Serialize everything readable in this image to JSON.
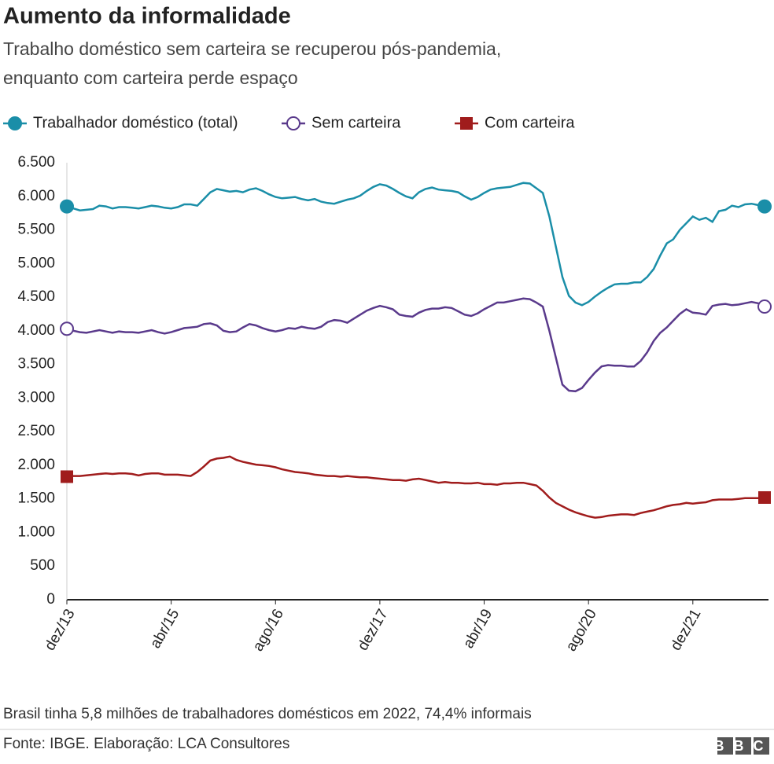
{
  "chart_data": {
    "type": "line",
    "title": "Aumento da informalidade",
    "subtitle": [
      "Trabalho doméstico sem carteira se recuperou pós-pandemia,",
      "enquanto com carteira perde espaço"
    ],
    "note": "Brasil tinha 5,8 milhões de trabalhadores domésticos em 2022, 74,4% informais",
    "source": "Fonte: IBGE. Elaboração: LCA Consultores",
    "logo": "BBC",
    "ylim": [
      0,
      6500
    ],
    "yticks": [
      0,
      500,
      {
        "value": 1000,
        "label": "1.000"
      },
      {
        "value": 1500,
        "label": "1.500"
      },
      {
        "value": 2000,
        "label": "2.000"
      },
      {
        "value": 2500,
        "label": "2.500"
      },
      {
        "value": 3000,
        "label": "3.000"
      },
      {
        "value": 3500,
        "label": "3.500"
      },
      {
        "value": 4000,
        "label": "4.000"
      },
      {
        "value": 4500,
        "label": "4.500"
      },
      {
        "value": 5000,
        "label": "5.000"
      },
      {
        "value": 5500,
        "label": "5.500"
      },
      {
        "value": 6000,
        "label": "6.000"
      },
      {
        "value": 6500,
        "label": "6.500"
      }
    ],
    "grid": false,
    "legend": "top-left",
    "categories": [
      "dez/13",
      null,
      null,
      null,
      null,
      null,
      null,
      null,
      null,
      null,
      null,
      null,
      null,
      null,
      null,
      null,
      "abr/15",
      null,
      null,
      null,
      null,
      null,
      null,
      null,
      null,
      null,
      null,
      null,
      null,
      null,
      null,
      null,
      "ago/16",
      null,
      null,
      null,
      null,
      null,
      null,
      null,
      null,
      null,
      null,
      null,
      null,
      null,
      null,
      null,
      "dez/17",
      null,
      null,
      null,
      null,
      null,
      null,
      null,
      null,
      null,
      null,
      null,
      null,
      null,
      null,
      null,
      "abr/19",
      null,
      null,
      null,
      null,
      null,
      null,
      null,
      null,
      null,
      null,
      null,
      null,
      null,
      null,
      null,
      "ago/20",
      null,
      null,
      null,
      null,
      null,
      null,
      null,
      null,
      null,
      null,
      null,
      null,
      null,
      null,
      null,
      "dez/21",
      null,
      null,
      null,
      null,
      null,
      null,
      null,
      null,
      null,
      null,
      null
    ],
    "series": [
      {
        "name": "Trabalhador doméstico (total)",
        "color": "#1a8ea8",
        "marker": "circle",
        "values": [
          5850,
          5820,
          5790,
          5800,
          5810,
          5860,
          5850,
          5820,
          5840,
          5840,
          5830,
          5820,
          5840,
          5860,
          5850,
          5830,
          5820,
          5840,
          5880,
          5880,
          5860,
          5960,
          6060,
          6110,
          6090,
          6070,
          6080,
          6060,
          6100,
          6120,
          6080,
          6030,
          5990,
          5970,
          5980,
          5990,
          5960,
          5940,
          5960,
          5920,
          5900,
          5890,
          5920,
          5950,
          5970,
          6010,
          6080,
          6140,
          6180,
          6160,
          6110,
          6050,
          6000,
          5970,
          6060,
          6110,
          6130,
          6100,
          6090,
          6080,
          6060,
          6000,
          5950,
          5990,
          6050,
          6100,
          6120,
          6130,
          6140,
          6170,
          6200,
          6190,
          6120,
          6050,
          5700,
          5250,
          4800,
          4520,
          4420,
          4380,
          4430,
          4510,
          4580,
          4640,
          4690,
          4700,
          4700,
          4720,
          4720,
          4800,
          4920,
          5120,
          5300,
          5360,
          5500,
          5600,
          5700,
          5650,
          5680,
          5620,
          5780,
          5800,
          5860,
          5840,
          5880,
          5890,
          5870,
          5850
        ]
      },
      {
        "name": "Sem carteira",
        "color": "#5a3a8c",
        "marker": "open-circle",
        "values": [
          4030,
          4000,
          3980,
          3970,
          3990,
          4010,
          3990,
          3970,
          3990,
          3980,
          3980,
          3970,
          3990,
          4010,
          3980,
          3960,
          3980,
          4010,
          4040,
          4050,
          4060,
          4100,
          4110,
          4080,
          4000,
          3980,
          3990,
          4050,
          4100,
          4080,
          4040,
          4010,
          3990,
          4010,
          4040,
          4030,
          4060,
          4040,
          4030,
          4060,
          4130,
          4160,
          4150,
          4120,
          4180,
          4240,
          4300,
          4340,
          4370,
          4350,
          4320,
          4240,
          4220,
          4210,
          4270,
          4310,
          4330,
          4330,
          4350,
          4340,
          4290,
          4240,
          4220,
          4260,
          4320,
          4370,
          4420,
          4420,
          4440,
          4460,
          4480,
          4470,
          4420,
          4360,
          4000,
          3600,
          3200,
          3110,
          3100,
          3150,
          3270,
          3380,
          3470,
          3490,
          3480,
          3480,
          3470,
          3470,
          3550,
          3680,
          3850,
          3970,
          4050,
          4150,
          4250,
          4320,
          4270,
          4260,
          4240,
          4370,
          4390,
          4400,
          4380,
          4390,
          4410,
          4430,
          4410,
          4360
        ]
      },
      {
        "name": "Com carteira",
        "color": "#a01c1c",
        "marker": "square",
        "values": [
          1830,
          1840,
          1840,
          1850,
          1860,
          1870,
          1880,
          1870,
          1880,
          1880,
          1870,
          1850,
          1870,
          1880,
          1880,
          1860,
          1860,
          1860,
          1850,
          1840,
          1900,
          1980,
          2070,
          2100,
          2110,
          2130,
          2080,
          2050,
          2030,
          2010,
          2000,
          1990,
          1970,
          1940,
          1920,
          1900,
          1890,
          1880,
          1860,
          1850,
          1840,
          1840,
          1830,
          1840,
          1830,
          1820,
          1820,
          1810,
          1800,
          1790,
          1780,
          1780,
          1770,
          1790,
          1800,
          1780,
          1760,
          1740,
          1750,
          1740,
          1740,
          1730,
          1730,
          1740,
          1720,
          1720,
          1710,
          1730,
          1730,
          1740,
          1740,
          1720,
          1700,
          1620,
          1520,
          1440,
          1390,
          1340,
          1300,
          1270,
          1240,
          1220,
          1230,
          1250,
          1260,
          1270,
          1270,
          1260,
          1290,
          1310,
          1330,
          1360,
          1390,
          1410,
          1420,
          1440,
          1430,
          1440,
          1450,
          1480,
          1490,
          1490,
          1490,
          1500,
          1510,
          1510,
          1510,
          1520
        ]
      }
    ]
  }
}
